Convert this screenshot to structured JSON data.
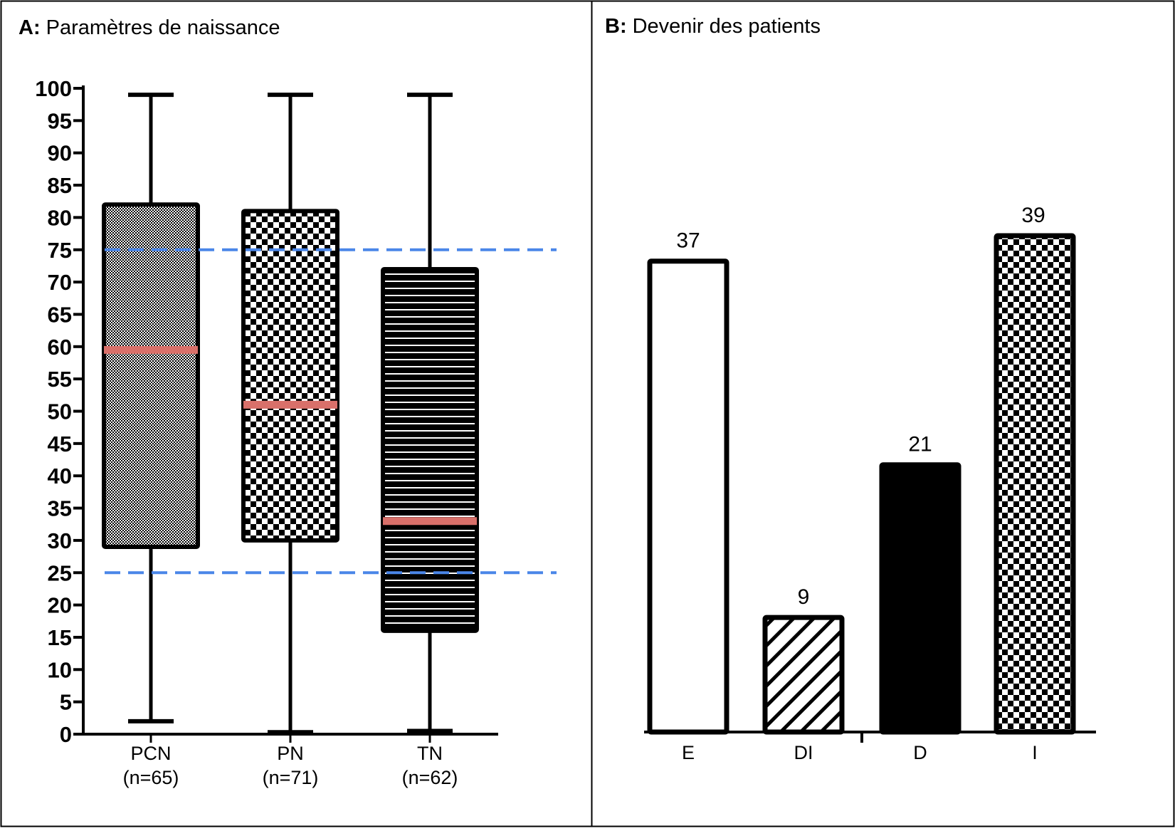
{
  "panels": {
    "a": {
      "letter": "A:",
      "title": "Paramètres de naissance"
    },
    "b": {
      "letter": "B:",
      "title": "Devenir des patients"
    }
  },
  "chart_data": [
    {
      "type": "boxplot",
      "panel": "A",
      "title": "Paramètres de naissance",
      "xlabel": "",
      "ylabel": "",
      "ylim": [
        0,
        100
      ],
      "yticks": [
        0,
        5,
        10,
        15,
        20,
        25,
        30,
        35,
        40,
        45,
        50,
        55,
        60,
        65,
        70,
        75,
        80,
        85,
        90,
        95,
        100
      ],
      "categories": [
        "PCN",
        "PN",
        "TN"
      ],
      "category_counts": [
        "(n=65)",
        "(n=71)",
        "(n=62)"
      ],
      "boxes": [
        {
          "name": "PCN",
          "min": 2,
          "q1": 29,
          "median": 59.5,
          "q3": 82,
          "max": 99,
          "pattern": "fine-check"
        },
        {
          "name": "PN",
          "min": 0.3,
          "q1": 30,
          "median": 51,
          "q3": 81,
          "max": 99,
          "pattern": "checker"
        },
        {
          "name": "TN",
          "min": 0.5,
          "q1": 16,
          "median": 33,
          "q3": 72,
          "max": 99,
          "pattern": "horizontal-lines"
        }
      ],
      "reference_lines": [
        25,
        75
      ],
      "colors": {
        "median": "#d9706a",
        "reference": "#4a86e8",
        "box": "#000000"
      }
    },
    {
      "type": "bar",
      "panel": "B",
      "title": "Devenir des patients",
      "xlabel": "",
      "ylabel": "",
      "categories": [
        "E",
        "DI",
        "D",
        "I"
      ],
      "values": [
        37,
        9,
        21,
        39
      ],
      "patterns": [
        "white",
        "diagonal",
        "black",
        "checker"
      ]
    }
  ]
}
